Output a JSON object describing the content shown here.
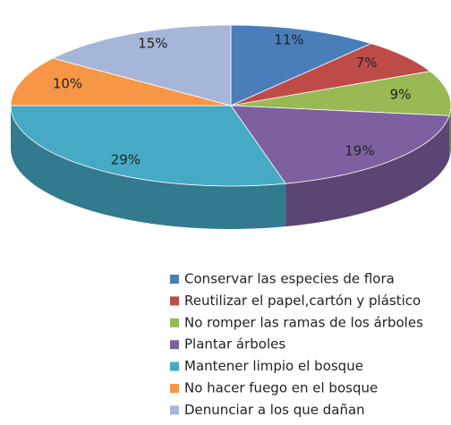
{
  "chart_data": {
    "type": "pie3d",
    "categories": [
      "Conservar las especies de flora",
      "Reutilizar el papel,cartón y plástico",
      "No romper las ramas de los árboles",
      "Plantar árboles",
      "Mantener limpio el bosque",
      "No hacer fuego en el bosque",
      "Denunciar a los que dañan"
    ],
    "values": [
      11,
      7,
      9,
      19,
      29,
      10,
      15
    ],
    "value_labels": [
      "11%",
      "7%",
      "9%",
      "19%",
      "29%",
      "10%",
      "15%"
    ],
    "colors": [
      "#4a7ebb",
      "#be4b48",
      "#98b954",
      "#7d60a0",
      "#46aac5",
      "#f79646",
      "#a5b6d9"
    ],
    "legend": "bottom"
  }
}
